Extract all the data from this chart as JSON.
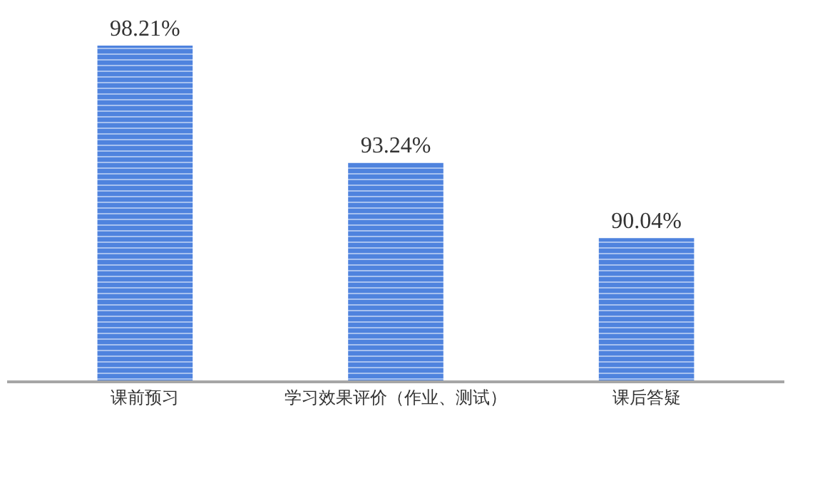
{
  "chart_data": {
    "type": "bar",
    "categories": [
      "课前预习",
      "学习效果评价（作业、测试）",
      "课后答疑"
    ],
    "values": [
      98.21,
      93.24,
      90.04
    ],
    "value_labels": [
      "98.21%",
      "93.24%",
      "90.04%"
    ],
    "color": "#4f83de",
    "ylim": [
      84,
      98.21
    ],
    "tick_labels": "x"
  }
}
